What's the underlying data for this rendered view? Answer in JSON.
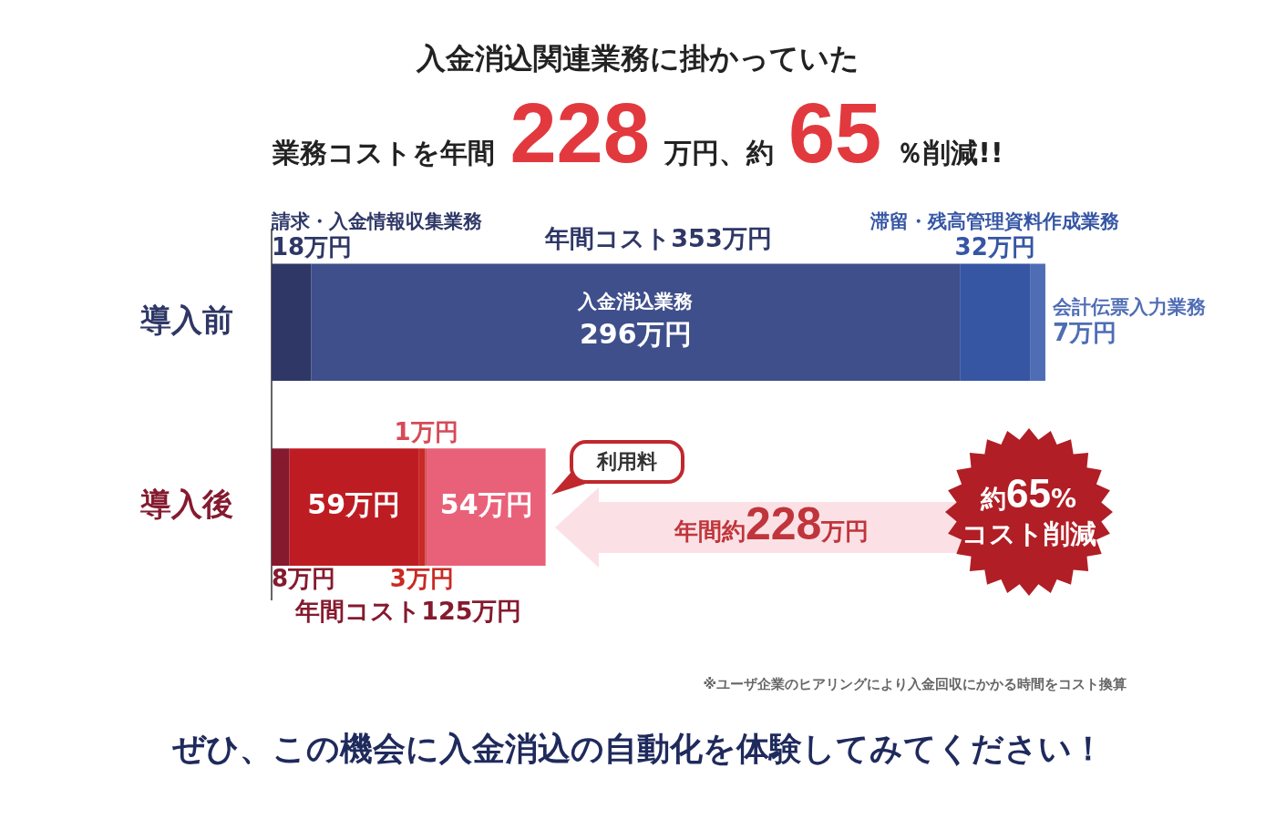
{
  "chart_data": {
    "type": "bar",
    "orientation": "horizontal",
    "stacked": true,
    "title": "入金消込関連業務に掛かっていた",
    "subtitle": "業務コストを年間228万円、約65％削減!!",
    "categories": [
      "導入前",
      "導入後"
    ],
    "series": [
      {
        "name": "請求・入金情報収集業務",
        "colors": [
          "#2e3766",
          "#851a2f"
        ],
        "values": [
          18,
          8
        ],
        "value_labels": [
          "18万円",
          "8万円"
        ]
      },
      {
        "name": "入金消込業務",
        "colors": [
          "#3f4f8b",
          "#be1c23"
        ],
        "values": [
          296,
          59
        ],
        "value_labels": [
          "296万円",
          "59万円"
        ]
      },
      {
        "name": "滞留・残高管理資料作成業務",
        "colors": [
          "#3656a4",
          "#c92a25"
        ],
        "values": [
          32,
          3
        ],
        "value_labels": [
          "32万円",
          "3万円"
        ]
      },
      {
        "name": "会計伝票入力業務",
        "colors": [
          "#4f6db5",
          "#d64a57"
        ],
        "values": [
          7,
          1
        ],
        "value_labels": [
          "7万円",
          "1万円"
        ]
      },
      {
        "name": "利用料",
        "color": "#e96179",
        "values": [
          null,
          54
        ],
        "value_labels": [
          null,
          "54万円"
        ]
      }
    ],
    "totals": [
      "年間コスト353万円",
      "年間コスト125万円"
    ],
    "tick_labels": "y",
    "annotations": [
      "年間約228万円",
      "約65%",
      "コスト削減",
      "※ユーザ企業のヒアリングにより入金回収にかかる時間をコスト換算",
      "ぜひ、この機会に入金消込の自動化を体験してみてください！"
    ]
  }
}
